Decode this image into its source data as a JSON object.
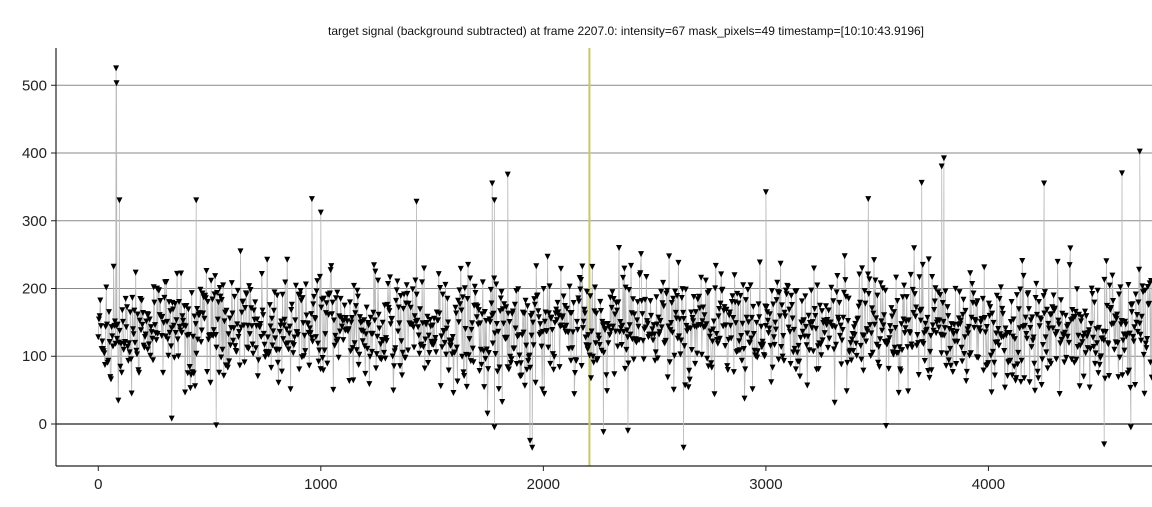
{
  "chart_data": {
    "type": "scatter",
    "title": "target signal (background subtracted) at frame 2207.0: intensity=67 mask_pixels=49 timestamp=[10:10:43.9196]",
    "xlabel": "",
    "ylabel": "",
    "xlim": [
      -190,
      4735
    ],
    "ylim": [
      -62,
      555
    ],
    "x_ticks": [
      0,
      1000,
      2000,
      3000,
      4000
    ],
    "y_ticks": [
      0,
      100,
      200,
      300,
      400,
      500
    ],
    "x_tick_labels": [
      "0",
      "1000",
      "2000",
      "3000",
      "4000"
    ],
    "y_tick_labels": [
      "0",
      "100",
      "200",
      "300",
      "400",
      "500"
    ],
    "grid": "horizontal",
    "current_frame": 2207,
    "frame_count": 4735,
    "marker": "down-triangle",
    "series": [
      {
        "values_note_segments": [
          {
            "x_start": 0,
            "x_end": 1000,
            "mean": 145,
            "spread": 52
          },
          {
            "x_start": 1000,
            "x_end": 2000,
            "mean": 140,
            "spread": 55
          },
          {
            "x_start": 2000,
            "x_end": 3000,
            "mean": 145,
            "spread": 55
          },
          {
            "x_start": 3000,
            "x_end": 4000,
            "mean": 145,
            "spread": 55
          },
          {
            "x_start": 4000,
            "x_end": 4735,
            "mean": 140,
            "spread": 60
          }
        ],
        "peaks": [
          {
            "x": 80,
            "y": 525
          },
          {
            "x": 82,
            "y": 503
          },
          {
            "x": 95,
            "y": 330
          },
          {
            "x": 440,
            "y": 330
          },
          {
            "x": 960,
            "y": 332
          },
          {
            "x": 1430,
            "y": 328
          },
          {
            "x": 1770,
            "y": 355
          },
          {
            "x": 1840,
            "y": 368
          },
          {
            "x": 1780,
            "y": 330
          },
          {
            "x": 3000,
            "y": 342
          },
          {
            "x": 3700,
            "y": 356
          },
          {
            "x": 3800,
            "y": 392
          },
          {
            "x": 3790,
            "y": 380
          },
          {
            "x": 4250,
            "y": 355
          },
          {
            "x": 4680,
            "y": 402
          },
          {
            "x": 4600,
            "y": 370
          },
          {
            "x": 1000,
            "y": 312
          },
          {
            "x": 3460,
            "y": 332
          }
        ],
        "dips": [
          {
            "x": 330,
            "y": 8
          },
          {
            "x": 530,
            "y": -2
          },
          {
            "x": 1780,
            "y": -5
          },
          {
            "x": 1940,
            "y": -25
          },
          {
            "x": 1950,
            "y": -35
          },
          {
            "x": 2270,
            "y": -12
          },
          {
            "x": 2380,
            "y": -10
          },
          {
            "x": 2630,
            "y": -35
          },
          {
            "x": 3540,
            "y": -3
          },
          {
            "x": 4520,
            "y": -30
          },
          {
            "x": 4640,
            "y": -5
          }
        ]
      }
    ]
  }
}
